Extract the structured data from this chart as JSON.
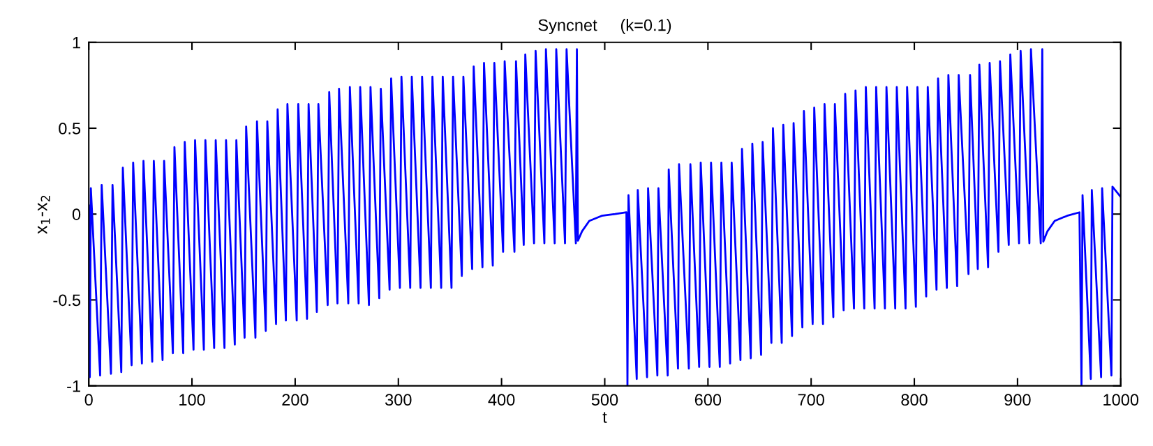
{
  "chart_data": {
    "type": "line",
    "title": "Syncnet     (k=0.1)",
    "xlabel": "t",
    "ylabel": "x$_{1}$-x$_{2}$",
    "xlim": [
      0,
      1000
    ],
    "xticks": [
      0,
      100,
      200,
      300,
      400,
      500,
      600,
      700,
      800,
      900,
      1000
    ],
    "ylim": [
      -1,
      1
    ],
    "yticks": [
      -1,
      -0.5,
      0,
      0.5,
      1
    ],
    "grid": false,
    "line_style": "solid",
    "marker": "none",
    "series": [
      {
        "color": "#0000ff",
        "x": [
          0,
          1,
          2,
          11,
          12.5,
          21.5,
          23,
          31.5,
          33,
          41.5,
          43,
          51.5,
          53,
          61.5,
          63,
          71.5,
          73,
          81.5,
          83,
          91.5,
          93,
          101.5,
          103,
          111.5,
          113,
          121.5,
          123,
          131.5,
          133,
          141.5,
          143,
          151,
          152.5,
          161.5,
          163,
          171.5,
          173,
          181.5,
          183,
          191,
          192.5,
          201.5,
          203,
          211.5,
          213,
          221,
          222.5,
          231.5,
          233,
          241,
          242.5,
          251.5,
          253,
          261.5,
          263,
          271.5,
          273,
          281.5,
          283,
          291.5,
          293,
          301.5,
          303,
          311.5,
          313,
          321.5,
          323,
          331.5,
          333,
          341.5,
          343,
          351.5,
          353,
          361.5,
          363,
          371.5,
          373,
          381.5,
          383,
          391.5,
          393,
          401.5,
          403,
          412.5,
          414,
          421.5,
          423,
          431.5,
          433,
          441.5,
          443,
          451.5,
          453,
          461.5,
          463,
          472,
          473,
          474,
          478,
          485,
          497,
          510,
          521,
          522,
          523,
          531,
          532,
          541,
          542,
          551,
          552,
          561,
          562,
          571,
          572,
          581.5,
          583,
          591.5,
          593,
          601.5,
          603,
          611.5,
          613,
          621.5,
          623,
          631.5,
          633,
          641.5,
          643,
          651.5,
          653,
          661.5,
          663,
          671.5,
          673,
          681.5,
          683,
          691.5,
          693,
          701.5,
          703,
          711.5,
          713,
          721.5,
          723,
          731.5,
          733,
          741.5,
          743,
          751.5,
          753,
          761.5,
          763,
          771.5,
          773,
          781.5,
          783,
          791.5,
          793,
          801.5,
          803,
          811.5,
          813,
          821.5,
          823,
          831.5,
          833,
          841.5,
          843,
          852.5,
          854,
          861.5,
          863,
          871.5,
          873,
          881.5,
          883,
          891.5,
          893,
          901.5,
          903,
          911.5,
          913,
          922.5,
          924,
          925,
          929,
          936,
          948,
          960,
          962,
          963,
          971,
          972,
          981,
          982,
          991,
          992,
          1000
        ],
        "values": [
          0.05,
          -0.95,
          0.15,
          -0.94,
          0.17,
          -0.93,
          0.17,
          -0.92,
          0.27,
          -0.88,
          0.3,
          -0.87,
          0.31,
          -0.86,
          0.31,
          -0.85,
          0.31,
          -0.81,
          0.39,
          -0.81,
          0.42,
          -0.79,
          0.43,
          -0.79,
          0.43,
          -0.78,
          0.43,
          -0.78,
          0.43,
          -0.76,
          0.43,
          -0.72,
          0.51,
          -0.72,
          0.54,
          -0.68,
          0.54,
          -0.64,
          0.61,
          -0.62,
          0.64,
          -0.62,
          0.64,
          -0.61,
          0.64,
          -0.57,
          0.64,
          -0.53,
          0.71,
          -0.52,
          0.73,
          -0.52,
          0.74,
          -0.52,
          0.74,
          -0.53,
          0.74,
          -0.49,
          0.73,
          -0.44,
          0.79,
          -0.43,
          0.8,
          -0.43,
          0.8,
          -0.43,
          0.8,
          -0.43,
          0.8,
          -0.43,
          0.8,
          -0.43,
          0.8,
          -0.36,
          0.8,
          -0.32,
          0.86,
          -0.31,
          0.88,
          -0.3,
          0.88,
          -0.22,
          0.89,
          -0.22,
          0.89,
          -0.18,
          0.93,
          -0.17,
          0.95,
          -0.17,
          0.96,
          -0.17,
          0.96,
          -0.17,
          0.96,
          -0.17,
          0.96,
          -0.155,
          -0.1,
          -0.04,
          -0.01,
          0.0,
          0.01,
          -1.0,
          0.11,
          -0.96,
          0.14,
          -0.95,
          0.15,
          -0.94,
          0.15,
          -0.94,
          0.26,
          -0.9,
          0.29,
          -0.9,
          0.29,
          -0.89,
          0.3,
          -0.89,
          0.3,
          -0.89,
          0.3,
          -0.87,
          0.3,
          -0.85,
          0.38,
          -0.84,
          0.41,
          -0.82,
          0.42,
          -0.75,
          0.5,
          -0.75,
          0.52,
          -0.71,
          0.53,
          -0.66,
          0.6,
          -0.64,
          0.62,
          -0.64,
          0.64,
          -0.6,
          0.64,
          -0.56,
          0.7,
          -0.55,
          0.72,
          -0.55,
          0.74,
          -0.55,
          0.74,
          -0.55,
          0.74,
          -0.55,
          0.74,
          -0.55,
          0.74,
          -0.54,
          0.74,
          -0.48,
          0.74,
          -0.44,
          0.79,
          -0.43,
          0.81,
          -0.42,
          0.81,
          -0.35,
          0.81,
          -0.32,
          0.87,
          -0.31,
          0.88,
          -0.22,
          0.89,
          -0.18,
          0.93,
          -0.17,
          0.95,
          -0.17,
          0.96,
          -0.17,
          0.96,
          -0.16,
          -0.1,
          -0.04,
          -0.01,
          0.01,
          -1.0,
          0.11,
          -0.96,
          0.14,
          -0.95,
          0.15,
          -0.94,
          0.16,
          0.1
        ]
      }
    ]
  }
}
